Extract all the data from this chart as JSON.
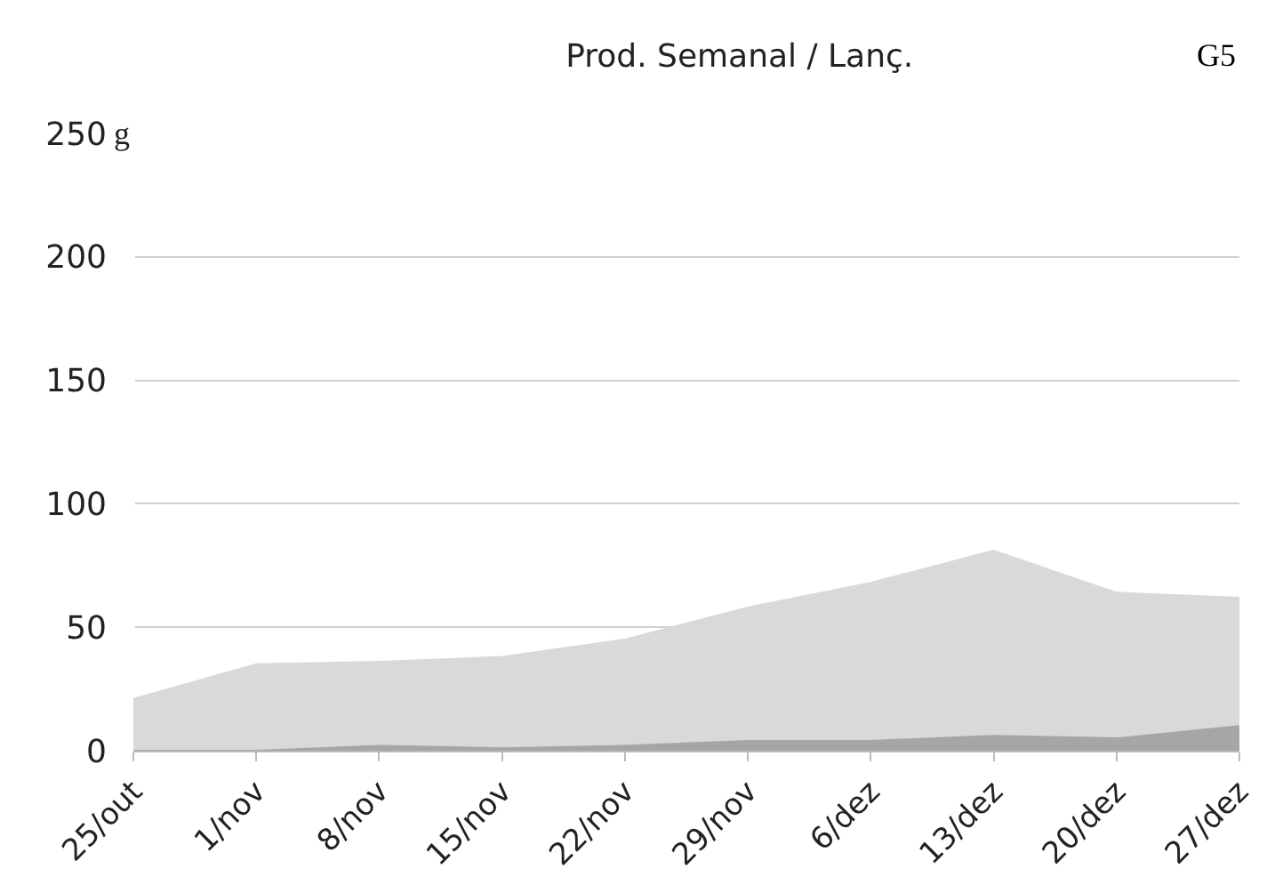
{
  "chart_data": {
    "type": "area",
    "title": "Prod. Semanal / Lanç.",
    "ylabel": "g",
    "annotations": [
      "G5"
    ],
    "categories": [
      "25/out",
      "1/nov",
      "8/nov",
      "15/nov",
      "22/nov",
      "29/nov",
      "6/dez",
      "13/dez",
      "20/dez",
      "27/dez"
    ],
    "series": [
      {
        "color": "#d9d9d9",
        "values": [
          21,
          35,
          36,
          38,
          45,
          58,
          68,
          81,
          64,
          62
        ]
      },
      {
        "color": "#a6a6a6",
        "values": [
          0,
          0,
          2,
          1,
          2,
          4,
          4,
          6,
          5,
          10
        ]
      }
    ],
    "ylim": [
      0,
      250
    ],
    "yticks": [
      0,
      50,
      100,
      150,
      200,
      250
    ],
    "grid": "y"
  }
}
